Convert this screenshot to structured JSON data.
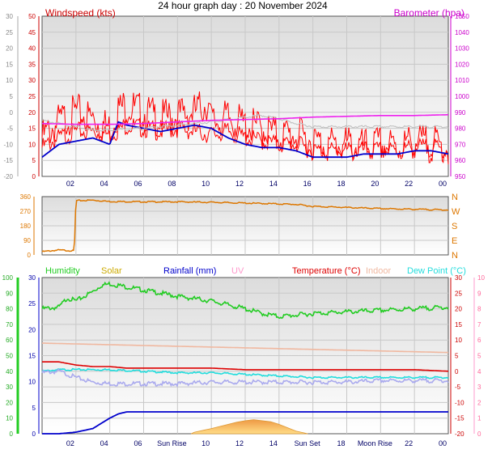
{
  "title": "24 hour graph day : 20 November 2024",
  "x_ticks": [
    "02",
    "04",
    "06",
    "08",
    "10",
    "12",
    "14",
    "16",
    "18",
    "20",
    "22",
    "00"
  ],
  "x_ticks_bottom": [
    "02",
    "04",
    "06",
    "Sun Rise",
    "10",
    "12",
    "14",
    "Sun Set",
    "18",
    "Moon Rise",
    "22",
    "00"
  ],
  "colors": {
    "wind": "#ff0000",
    "gust": "#ff0000",
    "avg": "#0000cc",
    "baro": "#ee22ee",
    "baro_shadow": "#bbbbbb",
    "dir": "#dd7700",
    "humidity": "#22cc22",
    "solar": "#ccaa00",
    "rain": "#0000cc",
    "uv": "#ff99cc",
    "temp": "#dd0000",
    "indoor": "#f0b8a0",
    "dew": "#22dddd",
    "dew_shadow": "#aaaaee"
  },
  "chart_data": [
    {
      "type": "line",
      "name": "wind-baro",
      "ylabel_left": "Windspeed (kts)",
      "ylabel_right": "Barometer (hpa)",
      "ylim_left": [
        0,
        50
      ],
      "left_ticks": [
        0,
        5,
        10,
        15,
        20,
        25,
        30,
        35,
        40,
        45,
        50
      ],
      "ylim_outer": [
        -20,
        30
      ],
      "outer_ticks": [
        -20,
        -15,
        -10,
        -5,
        0,
        5,
        10,
        15,
        20,
        25,
        30
      ],
      "ylim_right": [
        950,
        1050
      ],
      "right_ticks": [
        950,
        960,
        970,
        980,
        990,
        1000,
        1010,
        1020,
        1030,
        1040,
        1050
      ],
      "xlim": [
        0,
        24
      ],
      "series": [
        {
          "key": "gust",
          "x": [
            0,
            1,
            2,
            3,
            4,
            4.5,
            5,
            6,
            7,
            8,
            9,
            9.8,
            10,
            11,
            12,
            13,
            14,
            15,
            16,
            17,
            18,
            19,
            20,
            21,
            22,
            23,
            24
          ],
          "y": [
            12,
            17,
            20,
            18,
            15,
            21,
            22,
            20,
            18,
            19,
            20,
            23,
            17,
            18,
            16,
            15,
            13,
            13,
            11,
            10,
            10,
            9,
            10,
            9,
            11,
            10,
            9
          ]
        },
        {
          "key": "wind",
          "x": [
            0,
            1,
            2,
            3,
            4,
            5,
            6,
            7,
            8,
            9,
            10,
            11,
            12,
            13,
            14,
            15,
            16,
            17,
            18,
            19,
            20,
            21,
            22,
            23,
            24
          ],
          "y": [
            9,
            12,
            14,
            14,
            13,
            16,
            15,
            14,
            15,
            14,
            13,
            14,
            12,
            11,
            10,
            10,
            8,
            8,
            8,
            8,
            8,
            8,
            9,
            9,
            8
          ]
        },
        {
          "key": "avg",
          "x": [
            0,
            1,
            2,
            3,
            4,
            4.5,
            5,
            6,
            7,
            8,
            9,
            10,
            11,
            12,
            13,
            14,
            15,
            16,
            17,
            18,
            19,
            20,
            21,
            22,
            23,
            24
          ],
          "y": [
            6,
            10,
            11,
            12,
            10,
            17,
            16,
            15,
            14,
            15,
            16,
            15,
            12,
            10,
            9,
            9,
            8,
            6,
            6,
            6,
            7,
            7,
            7,
            8,
            8,
            7
          ]
        },
        {
          "key": "baro_shadow",
          "x": [
            0,
            1,
            2,
            3,
            4,
            6,
            8,
            10,
            12,
            13,
            14,
            15,
            16,
            18,
            20,
            22,
            24
          ],
          "y": [
            985,
            983,
            981,
            979,
            979,
            980,
            982,
            984,
            987,
            988,
            986,
            983,
            981,
            981,
            981,
            981,
            981
          ],
          "axis": "right"
        },
        {
          "key": "baro",
          "x": [
            0,
            2,
            4,
            6,
            8,
            10,
            12,
            14,
            16,
            18,
            20,
            22,
            24
          ],
          "y": [
            983,
            982.5,
            982.5,
            983,
            984,
            985,
            985.5,
            986,
            987,
            987.5,
            988,
            988,
            988.5
          ],
          "axis": "right"
        }
      ]
    },
    {
      "type": "line",
      "name": "wind-direction",
      "ylim": [
        0,
        360
      ],
      "ticks": [
        0,
        90,
        180,
        270,
        360
      ],
      "compass": [
        "N",
        "E",
        "S",
        "W",
        "N"
      ],
      "xlim": [
        0,
        24
      ],
      "series": [
        {
          "key": "dir",
          "x": [
            0,
            1,
            1.9,
            2.0,
            3,
            4,
            6,
            8,
            10,
            12,
            14,
            15,
            16,
            18,
            20,
            22,
            24
          ],
          "y": [
            20,
            30,
            25,
            335,
            338,
            330,
            328,
            328,
            325,
            320,
            315,
            312,
            300,
            293,
            286,
            282,
            278
          ]
        }
      ]
    },
    {
      "type": "line",
      "name": "climate",
      "legend": [
        "Humidity",
        "Solar",
        "Rainfall (mm)",
        "UV",
        "Temperature (°C)",
        "Indoor",
        "Dew Point (°C)"
      ],
      "left_outer_ticks": [
        0,
        10,
        20,
        30,
        40,
        50,
        60,
        70,
        80,
        90,
        100
      ],
      "ylim_left_outer": [
        0,
        100
      ],
      "left_inner_ticks": [
        0,
        5,
        10,
        15,
        20,
        25,
        30
      ],
      "ylim_left_inner": [
        0,
        30
      ],
      "right_inner_ticks": [
        -20,
        -15,
        -10,
        -5,
        0,
        5,
        10,
        15,
        20,
        25,
        30
      ],
      "ylim_right_inner": [
        -20,
        30
      ],
      "right_outer_ticks": [
        0,
        1,
        2,
        3,
        4,
        5,
        6,
        7,
        8,
        9,
        10
      ],
      "ylim_right_outer": [
        0,
        10
      ],
      "xlim": [
        0,
        24
      ],
      "series": [
        {
          "key": "humidity",
          "axis": "left_outer",
          "x": [
            0,
            1,
            1.5,
            2,
            3,
            3.5,
            4,
            5,
            6,
            8,
            10,
            12,
            13,
            14,
            15,
            16,
            18,
            20,
            22,
            24
          ],
          "y": [
            80,
            81,
            87,
            85,
            91,
            95,
            96,
            94,
            92,
            88,
            85,
            80,
            77,
            75,
            76,
            77,
            78,
            79,
            80,
            81
          ]
        },
        {
          "key": "indoor",
          "axis": "right_inner",
          "x": [
            0,
            4,
            8,
            12,
            16,
            20,
            24
          ],
          "y": [
            9,
            8.5,
            8,
            7.5,
            7,
            6.5,
            6
          ]
        },
        {
          "key": "temp",
          "axis": "right_inner",
          "x": [
            0,
            1,
            2,
            3,
            4,
            5,
            6,
            8,
            10,
            12,
            14,
            16,
            18,
            20,
            22,
            24
          ],
          "y": [
            3,
            3,
            2,
            1.5,
            1.5,
            1,
            1,
            1,
            1,
            0.5,
            0.5,
            0.5,
            0.5,
            0.5,
            0.5,
            0
          ]
        },
        {
          "key": "dew",
          "axis": "right_inner",
          "x": [
            0,
            1,
            2,
            4,
            6,
            8,
            10,
            12,
            14,
            16,
            18,
            20,
            22,
            24
          ],
          "y": [
            0,
            0.5,
            0.5,
            0.5,
            0,
            -0.5,
            -0.5,
            -1,
            -1.5,
            -2,
            -2,
            -2,
            -2,
            -2
          ]
        },
        {
          "key": "dew_shadow",
          "axis": "right_inner",
          "x": [
            0,
            1,
            1.5,
            2,
            3,
            4,
            5,
            6,
            8,
            10,
            12,
            14,
            16,
            18,
            20,
            22,
            24
          ],
          "y": [
            -0.5,
            0,
            -1,
            -2,
            -3.5,
            -4,
            -4,
            -4,
            -4,
            -3.5,
            -3.5,
            -3.5,
            -3.5,
            -3.5,
            -3,
            -3,
            -3
          ]
        },
        {
          "key": "rain",
          "axis": "left_inner",
          "x": [
            0,
            1,
            2,
            3,
            3.5,
            4,
            4.5,
            5,
            24
          ],
          "y": [
            0,
            0,
            0.3,
            1,
            2,
            3,
            3.8,
            4.2,
            4.2
          ]
        },
        {
          "key": "solar",
          "axis": "left_inner",
          "type": "area",
          "x": [
            8.8,
            9,
            10,
            11,
            11.5,
            12,
            12.5,
            13,
            13.5,
            14,
            15,
            15.7
          ],
          "y": [
            0,
            0.3,
            1,
            1.8,
            2.2,
            2.5,
            2.7,
            2.5,
            2.3,
            1.8,
            0.5,
            0
          ]
        }
      ]
    }
  ]
}
